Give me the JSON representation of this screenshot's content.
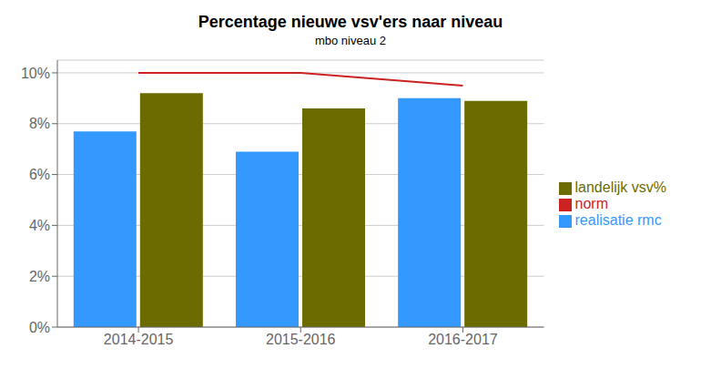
{
  "chart_data": {
    "type": "bar",
    "title": "Percentage nieuwe vsv'ers naar niveau",
    "subtitle": "mbo niveau 2",
    "categories": [
      "2014-2015",
      "2015-2016",
      "2016-2017"
    ],
    "series": [
      {
        "name": "realisatie rmc",
        "color": "#3399FF",
        "values": [
          0.077,
          0.069,
          0.09
        ]
      },
      {
        "name": "landelijk vsv%",
        "color": "#6B6B00",
        "values": [
          0.092,
          0.086,
          0.089
        ]
      },
      {
        "name": "norm",
        "type": "line",
        "color": "#CC2222",
        "values": [
          0.1,
          0.1,
          0.095
        ]
      }
    ],
    "ylim": [
      0,
      0.105
    ],
    "yticks": [
      {
        "value": 0.0,
        "label": "0%"
      },
      {
        "value": 0.02,
        "label": "2%"
      },
      {
        "value": 0.04,
        "label": "4%"
      },
      {
        "value": 0.06,
        "label": "6%"
      },
      {
        "value": 0.08,
        "label": "8%"
      },
      {
        "value": 0.1,
        "label": "10%"
      }
    ],
    "grid": true,
    "legend": "right"
  }
}
